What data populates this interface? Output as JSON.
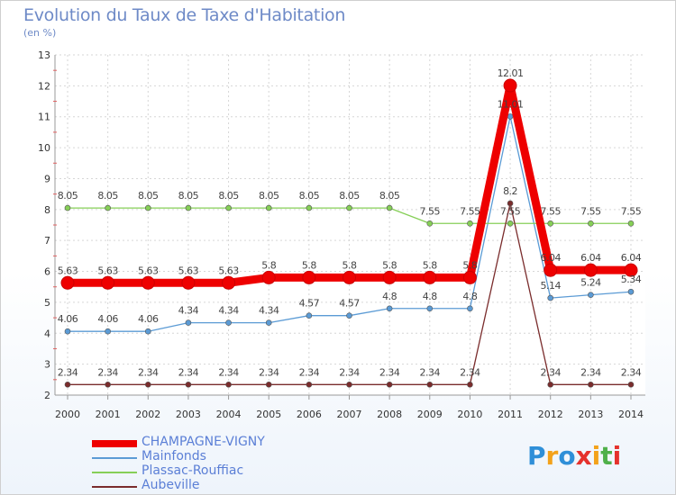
{
  "title": "Evolution du Taux de Taxe d'Habitation",
  "subtitle": "(en %)",
  "logo": {
    "letters": [
      "P",
      "r",
      "o",
      "x",
      "i",
      "t",
      "i"
    ],
    "colors": [
      "#2f8fd8",
      "#f3a21b",
      "#2f8fd8",
      "#e5322d",
      "#f3a21b",
      "#4fb04a",
      "#e5322d"
    ]
  },
  "chart_data": {
    "type": "line",
    "x": [
      "2000",
      "2001",
      "2002",
      "2003",
      "2004",
      "2005",
      "2006",
      "2007",
      "2008",
      "2009",
      "2010",
      "2011",
      "2012",
      "2013",
      "2014"
    ],
    "ylim": [
      2,
      13
    ],
    "yticks": [
      "2",
      "3",
      "4",
      "5",
      "6",
      "7",
      "8",
      "9",
      "10",
      "11",
      "12",
      "13"
    ],
    "grid": true,
    "legend_position": "bottom-left",
    "series": [
      {
        "name": "CHAMPAGNE-VIGNY",
        "color": "#ee0000",
        "values": [
          5.63,
          5.63,
          5.63,
          5.63,
          5.63,
          5.8,
          5.8,
          5.8,
          5.8,
          5.8,
          5.8,
          12.01,
          6.04,
          6.04,
          6.04
        ],
        "labels": [
          "5.63",
          "5.63",
          "5.63",
          "5.63",
          "5.63",
          "5.8",
          "5.8",
          "5.8",
          "5.8",
          "5.8",
          "5.8",
          "12.01",
          "6.04",
          "6.04",
          "6.04"
        ]
      },
      {
        "name": "Mainfonds",
        "color": "#5b9bd5",
        "values": [
          4.06,
          4.06,
          4.06,
          4.34,
          4.34,
          4.34,
          4.57,
          4.57,
          4.8,
          4.8,
          4.8,
          11.01,
          5.14,
          5.24,
          5.34
        ],
        "labels": [
          "4.06",
          "4.06",
          "4.06",
          "4.34",
          "4.34",
          "4.34",
          "4.57",
          "4.57",
          "4.8",
          "4.8",
          "4.8",
          "11.01",
          "5.14",
          "5.24",
          "5.34"
        ]
      },
      {
        "name": "Plassac-Rouffiac",
        "color": "#86cf57",
        "values": [
          8.05,
          8.05,
          8.05,
          8.05,
          8.05,
          8.05,
          8.05,
          8.05,
          8.05,
          7.55,
          7.55,
          7.55,
          7.55,
          7.55,
          7.55
        ],
        "labels": [
          "8.05",
          "8.05",
          "8.05",
          "8.05",
          "8.05",
          "8.05",
          "8.05",
          "8.05",
          "8.05",
          "7.55",
          "7.55",
          "7.55",
          "7.55",
          "7.55",
          "7.55"
        ]
      },
      {
        "name": "Aubeville",
        "color": "#7a2c2c",
        "values": [
          2.34,
          2.34,
          2.34,
          2.34,
          2.34,
          2.34,
          2.34,
          2.34,
          2.34,
          2.34,
          2.34,
          8.2,
          2.34,
          2.34,
          2.34
        ],
        "labels": [
          "2.34",
          "2.34",
          "2.34",
          "2.34",
          "2.34",
          "2.34",
          "2.34",
          "2.34",
          "2.34",
          "2.34",
          "2.34",
          "8.2",
          "2.34",
          "2.34",
          "2.34"
        ]
      }
    ]
  }
}
